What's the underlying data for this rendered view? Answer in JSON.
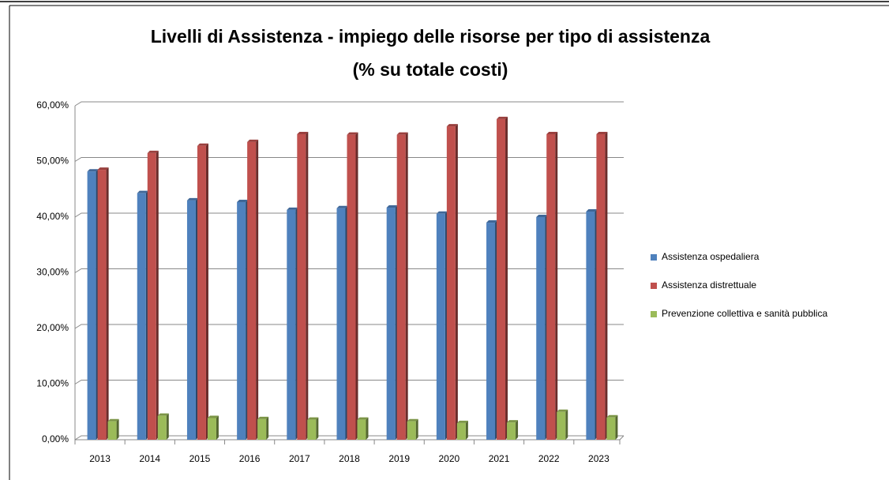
{
  "chart_data": {
    "type": "bar",
    "title": "Livelli di Assistenza - impiego delle risorse per tipo di assistenza",
    "subtitle": "(% su totale costi)",
    "categories": [
      "2013",
      "2014",
      "2015",
      "2016",
      "2017",
      "2018",
      "2019",
      "2020",
      "2021",
      "2022",
      "2023"
    ],
    "series": [
      {
        "name": "Assistenza ospedaliera",
        "color": "#4f81bd",
        "values": [
          48.2,
          44.3,
          43.0,
          42.7,
          41.3,
          41.6,
          41.7,
          40.6,
          39.0,
          40.0,
          41.0
        ]
      },
      {
        "name": "Assistenza distrettuale",
        "color": "#c0504d",
        "values": [
          48.5,
          51.5,
          52.8,
          53.5,
          54.9,
          54.8,
          54.8,
          56.3,
          57.6,
          54.9,
          54.9
        ]
      },
      {
        "name": "Prevenzione collettiva e sanità pubblica",
        "color": "#9bbb59",
        "values": [
          3.3,
          4.3,
          3.9,
          3.7,
          3.6,
          3.6,
          3.3,
          3.0,
          3.1,
          5.0,
          4.0
        ]
      }
    ],
    "ylim": [
      0,
      60
    ],
    "yticks": [
      {
        "value": 0,
        "label": "0,00%"
      },
      {
        "value": 10,
        "label": "10,00%"
      },
      {
        "value": 20,
        "label": "20,00%"
      },
      {
        "value": 30,
        "label": "30,00%"
      },
      {
        "value": 40,
        "label": "40,00%"
      },
      {
        "value": 50,
        "label": "50,00%"
      },
      {
        "value": 60,
        "label": "60,00%"
      }
    ],
    "grid": true,
    "legend": "right"
  }
}
